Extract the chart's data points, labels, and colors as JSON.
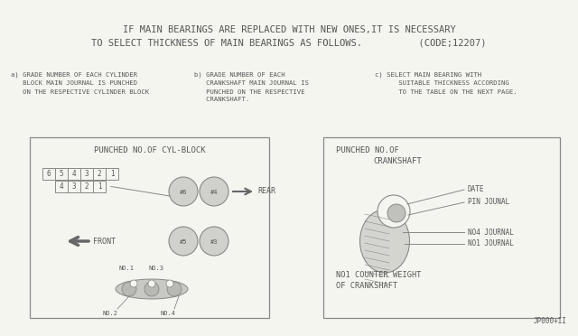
{
  "bg_color": "#f5f5f0",
  "line_color": "#888888",
  "dark_line": "#666666",
  "text_color": "#555555",
  "title_line1": "IF MAIN BEARINGS ARE REPLACED WITH NEW ONES,IT IS NECESSARY",
  "title_line2": "TO SELECT THICKNESS OF MAIN BEARINGS AS FOLLOWS.          (CODE;12207)",
  "note_a_lines": [
    "a) GRADE NUMBER OF EACH CYLINDER",
    "   BLOCK MAIN JOURNAL IS PUNCHED",
    "   ON THE RESPECTIVE CYLINDER BLOCK"
  ],
  "note_b_lines": [
    "b) GRADE NUMBER OF EACH",
    "   CRANKSHAFT MAIN JOURNAL IS",
    "   PUNCHED ON THE RESPECTIVE",
    "   CRANKSHAFT."
  ],
  "note_c_lines": [
    "c) SELECT MAIN BEARING WITH",
    "      SUITABLE THICKNESS ACCORDING",
    "      TO THE TABLE ON THE NEXT PAGE."
  ],
  "box1_title": "PUNCHED NO.OF CYL-BLOCK",
  "nums_top": [
    "6",
    "5",
    "4",
    "3",
    "2",
    "1"
  ],
  "nums_bot": [
    "4",
    "3",
    "2",
    "1"
  ],
  "cyl_labels_top": [
    "#6",
    "#4"
  ],
  "cyl_labels_bot": [
    "#5",
    "#3"
  ],
  "rear_label": "REAR",
  "front_label": "FRONT",
  "no_labels_top": [
    "NO.1",
    "NO.3"
  ],
  "no_labels_bot": [
    "NO.2",
    "NO.4"
  ],
  "box2_title1": "PUNCHED NO.OF",
  "box2_title2": "CRANKSHAFT",
  "box2_labels": [
    "DATE",
    "PIN JOUNAL",
    "NO4 JOURNAL",
    "NO1 JOURNAL"
  ],
  "box2_bottom1": "NO1 COUNTER WEIGHT",
  "box2_bottom2": "OF CRANKSHAFT",
  "footer": "JP000+II",
  "font_family": "monospace"
}
